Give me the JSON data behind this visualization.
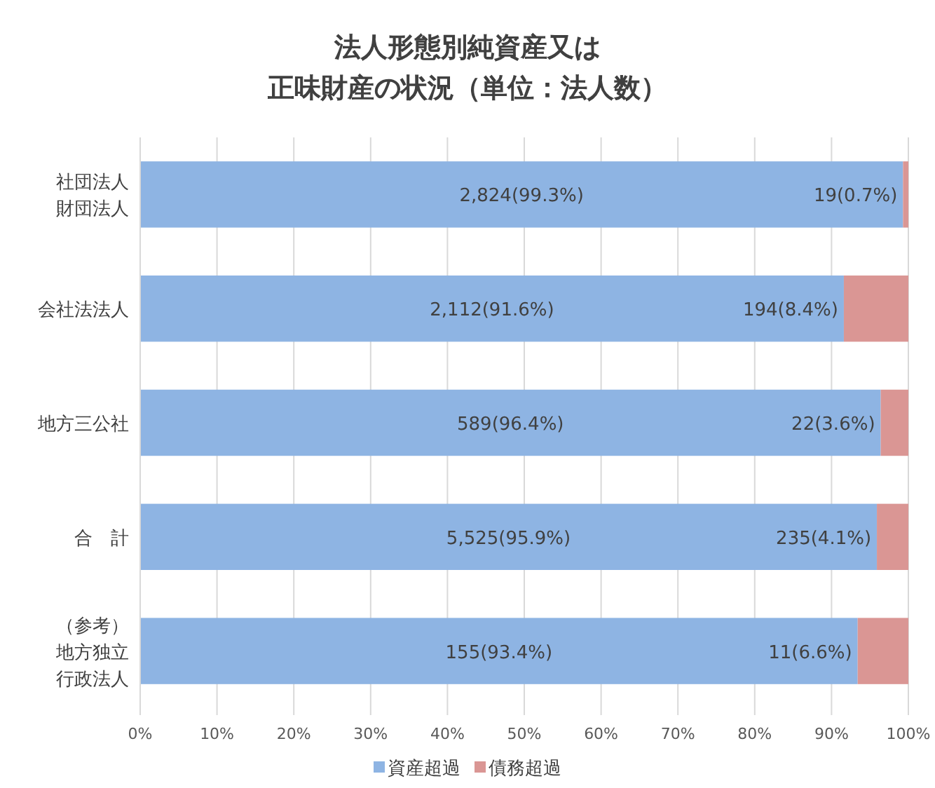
{
  "chart_data": {
    "type": "bar",
    "orientation": "horizontal",
    "stacked": true,
    "title": "法人形態別純資産又は正味財産の状況（単位：法人数）",
    "categories": [
      "社団法人財団法人",
      "会社法法人",
      "地方三公社",
      "合　計",
      "（参考）地方独立行政法人"
    ],
    "series": [
      {
        "name": "資産超過",
        "color": "#8eb4e3",
        "values": [
          99.3,
          91.6,
          96.4,
          95.9,
          93.4
        ],
        "value_labels": [
          "2,824(99.3%)",
          "2,112(91.6%)",
          "589(96.4%)",
          "5,525(95.9%)",
          "155(93.4%)"
        ]
      },
      {
        "name": "債務超過",
        "color": "#da9694",
        "values": [
          0.7,
          8.4,
          3.6,
          4.1,
          6.6
        ],
        "value_labels": [
          "19(0.7%)",
          "194(8.4%)",
          "22(3.6%)",
          "235(4.1%)",
          "11(6.6%)"
        ]
      }
    ],
    "xlim": [
      0,
      100
    ],
    "xticks": [
      {
        "value": 0,
        "label": "0%"
      },
      {
        "value": 10,
        "label": "10%"
      },
      {
        "value": 20,
        "label": "20%"
      },
      {
        "value": 30,
        "label": "30%"
      },
      {
        "value": 40,
        "label": "40%"
      },
      {
        "value": 50,
        "label": "50%"
      },
      {
        "value": 60,
        "label": "60%"
      },
      {
        "value": 70,
        "label": "70%"
      },
      {
        "value": 80,
        "label": "80%"
      },
      {
        "value": 90,
        "label": "90%"
      },
      {
        "value": 100,
        "label": "100%"
      }
    ],
    "grid": "x",
    "legend": "bottom"
  }
}
